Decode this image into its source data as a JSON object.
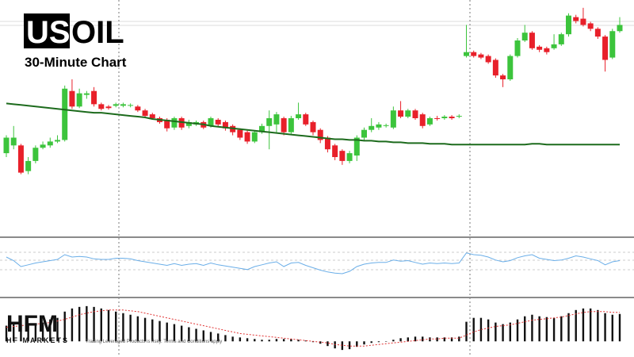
{
  "brand": {
    "symbol_highlight": "US",
    "symbol_rest": "OIL",
    "subtitle": "30-Minute Chart",
    "logo": "HFM",
    "company": "HF MARKETS",
    "disclaimer": "Trading Leveraged Products is risky. Terms and Conditions apply"
  },
  "chart_data": [
    {
      "type": "candlestick",
      "ylim": [
        0,
        300
      ],
      "up_color": "#3cc43c",
      "down_color": "#e8202a",
      "open": [
        105,
        115,
        115,
        82,
        95,
        112,
        115,
        120,
        122,
        185,
        165,
        180,
        185,
        168,
        165,
        166,
        166,
        166,
        165,
        160,
        155,
        150,
        148,
        138,
        150,
        140,
        142,
        145,
        140,
        148,
        145,
        140,
        135,
        132,
        120,
        132,
        140,
        142,
        150,
        132,
        150,
        155,
        145,
        135,
        125,
        115,
        108,
        95,
        102,
        125,
        135,
        138,
        140,
        138,
        160,
        152,
        160,
        155,
        142,
        150,
        150,
        152,
        152,
        230,
        235,
        232,
        230,
        225,
        205,
        200,
        230,
        250,
        260,
        242,
        240,
        240,
        245,
        258,
        280,
        278,
        272,
        265,
        255,
        228,
        262
      ],
      "high": [
        128,
        140,
        117,
        100,
        115,
        120,
        125,
        128,
        192,
        200,
        188,
        185,
        190,
        170,
        167,
        170,
        170,
        169,
        167,
        162,
        157,
        152,
        150,
        152,
        152,
        148,
        147,
        147,
        152,
        150,
        147,
        142,
        137,
        134,
        134,
        143,
        160,
        158,
        152,
        153,
        170,
        157,
        147,
        137,
        127,
        117,
        110,
        108,
        128,
        138,
        150,
        145,
        143,
        165,
        172,
        162,
        162,
        157,
        152,
        153,
        154,
        154,
        155,
        270,
        237,
        234,
        232,
        227,
        207,
        232,
        253,
        270,
        262,
        244,
        242,
        258,
        260,
        285,
        283,
        292,
        274,
        267,
        257,
        265,
        280
      ],
      "low": [
        100,
        110,
        78,
        78,
        92,
        110,
        112,
        118,
        120,
        162,
        163,
        175,
        165,
        160,
        161,
        164,
        164,
        164,
        158,
        151,
        148,
        143,
        133,
        135,
        135,
        137,
        140,
        136,
        138,
        139,
        134,
        128,
        122,
        117,
        118,
        130,
        110,
        132,
        128,
        130,
        148,
        140,
        128,
        118,
        106,
        96,
        90,
        92,
        95,
        122,
        132,
        135,
        138,
        136,
        150,
        150,
        148,
        137,
        140,
        147,
        148,
        148,
        150,
        228,
        228,
        226,
        220,
        202,
        190,
        198,
        228,
        248,
        238,
        235,
        232,
        238,
        243,
        255,
        272,
        268,
        262,
        252,
        210,
        226,
        260
      ],
      "close": [
        125,
        125,
        80,
        95,
        112,
        116,
        120,
        122,
        188,
        165,
        182,
        182,
        168,
        162,
        163,
        168,
        168,
        167,
        160,
        153,
        150,
        145,
        137,
        150,
        138,
        145,
        145,
        138,
        150,
        142,
        137,
        132,
        125,
        120,
        132,
        140,
        150,
        155,
        132,
        150,
        155,
        142,
        132,
        122,
        110,
        100,
        95,
        105,
        125,
        135,
        140,
        142,
        141,
        160,
        152,
        160,
        150,
        140,
        150,
        149,
        152,
        150,
        153,
        235,
        230,
        228,
        222,
        205,
        200,
        230,
        250,
        260,
        240,
        238,
        235,
        245,
        258,
        282,
        275,
        270,
        265,
        255,
        225,
        262,
        270
      ],
      "ma_color": "#1d6b1d",
      "ma": [
        169,
        168,
        167,
        166,
        165,
        164,
        163,
        162,
        161,
        160,
        159,
        158,
        157,
        157,
        156,
        155,
        154,
        153,
        152,
        151,
        149,
        148,
        147,
        146,
        145,
        144,
        143,
        142,
        140,
        139,
        138,
        137,
        136,
        135,
        134,
        133,
        132,
        131,
        130,
        129,
        128,
        127,
        126,
        125,
        124,
        123,
        123,
        122,
        122,
        121,
        121,
        120,
        120,
        119,
        119,
        118,
        118,
        118,
        117,
        117,
        117,
        116,
        116,
        116,
        116,
        116,
        116,
        116,
        116,
        116,
        116,
        116,
        117,
        117,
        116,
        116,
        116,
        116,
        116,
        116,
        116,
        116,
        116,
        116,
        116
      ]
    },
    {
      "type": "line",
      "ylim": [
        0,
        100
      ],
      "color": "#6aaee8",
      "values": [
        68,
        62,
        52,
        55,
        58,
        60,
        62,
        64,
        72,
        68,
        69,
        68,
        65,
        64,
        64,
        66,
        66,
        65,
        62,
        60,
        58,
        56,
        54,
        57,
        54,
        56,
        57,
        54,
        58,
        55,
        53,
        51,
        49,
        47,
        52,
        55,
        58,
        60,
        52,
        58,
        59,
        54,
        50,
        46,
        43,
        41,
        40,
        44,
        52,
        56,
        58,
        59,
        59,
        63,
        61,
        62,
        59,
        56,
        58,
        57,
        58,
        57,
        58,
        75,
        72,
        71,
        68,
        63,
        60,
        62,
        67,
        70,
        72,
        66,
        64,
        62,
        63,
        66,
        70,
        68,
        65,
        62,
        55,
        60,
        62
      ]
    },
    {
      "type": "bar",
      "ylim": [
        -20,
        55
      ],
      "color": "#111111",
      "signal_color": "#e03030",
      "values": [
        20,
        25,
        22,
        20,
        22,
        24,
        28,
        30,
        38,
        42,
        44,
        45,
        44,
        42,
        40,
        38,
        36,
        34,
        32,
        30,
        28,
        26,
        24,
        22,
        20,
        18,
        16,
        14,
        12,
        10,
        8,
        6,
        5,
        4,
        3,
        2,
        2,
        3,
        3,
        3,
        2,
        1,
        -1,
        -3,
        -6,
        -9,
        -11,
        -10,
        -7,
        -4,
        -2,
        -1,
        0,
        2,
        4,
        5,
        6,
        6,
        5,
        5,
        5,
        5,
        6,
        25,
        30,
        30,
        28,
        24,
        22,
        24,
        28,
        32,
        34,
        32,
        31,
        30,
        32,
        36,
        40,
        42,
        42,
        40,
        36,
        34,
        35
      ],
      "signal": [
        18,
        19,
        20,
        21,
        22,
        23,
        24,
        26,
        28,
        31,
        34,
        36,
        38,
        39,
        40,
        40,
        40,
        39,
        38,
        36,
        34,
        32,
        30,
        28,
        26,
        24,
        22,
        20,
        18,
        16,
        14,
        12,
        10,
        9,
        8,
        7,
        6,
        5,
        4,
        3,
        2,
        1,
        0,
        -1,
        -2,
        -4,
        -5,
        -6,
        -6,
        -6,
        -5,
        -4,
        -3,
        -2,
        -1,
        0,
        1,
        2,
        3,
        3,
        4,
        4,
        4,
        8,
        12,
        15,
        17,
        19,
        20,
        21,
        23,
        25,
        27,
        28,
        29,
        30,
        31,
        33,
        35,
        37,
        38,
        38,
        38,
        37,
        37
      ]
    }
  ]
}
